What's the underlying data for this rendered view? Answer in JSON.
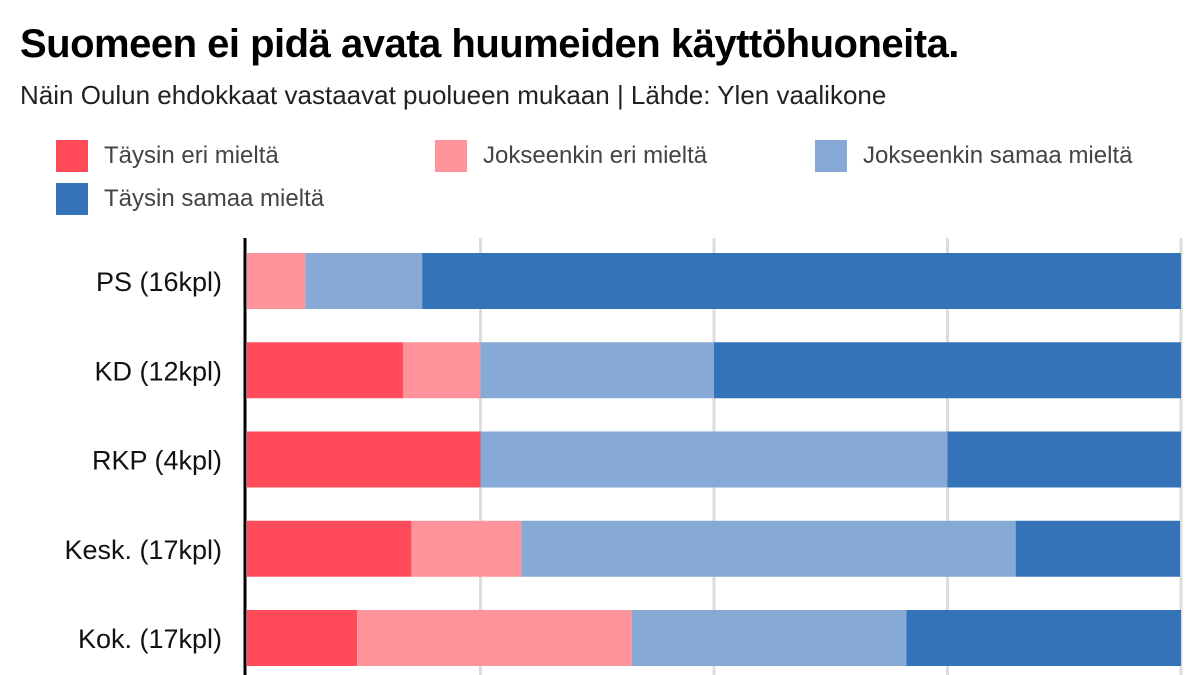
{
  "header": {
    "title": "Suomeen ei pidä avata huumeiden käyttöhuoneita.",
    "subtitle": "Näin Oulun ehdokkaat vastaavat puolueen mukaan | Lähde: Ylen vaalikone"
  },
  "colors": {
    "taysin_eri": "#ff4b5a",
    "jokseenkin_eri": "#ff939c",
    "jokseenkin_samaa": "#86aad5",
    "taysin_samaa": "#3473b7",
    "grid": "#dddddd",
    "axis": "#000000"
  },
  "chart_data": {
    "type": "bar",
    "orientation": "horizontal",
    "stacked": true,
    "normalized_percent": true,
    "title": "Suomeen ei pidä avata huumeiden käyttöhuoneita.",
    "subtitle": "Näin Oulun ehdokkaat vastaavat puolueen mukaan | Lähde: Ylen vaalikone",
    "categories": [
      "PS (16kpl)",
      "KD (12kpl)",
      "RKP (4kpl)",
      "Kesk. (17kpl)",
      "Kok. (17kpl)"
    ],
    "series": [
      {
        "name": "Täysin eri mieltä",
        "values": [
          0,
          16.7,
          25,
          17.6,
          11.8
        ]
      },
      {
        "name": "Jokseenkin eri mieltä",
        "values": [
          6.25,
          8.3,
          0,
          11.8,
          29.4
        ]
      },
      {
        "name": "Jokseenkin samaa mieltä",
        "values": [
          12.5,
          25,
          50,
          52.9,
          29.4
        ]
      },
      {
        "name": "Täysin samaa mieltä",
        "values": [
          81.25,
          50,
          25,
          17.6,
          29.4
        ]
      }
    ],
    "xlim": [
      0,
      100
    ],
    "gridlines_at": [
      25,
      50,
      75,
      100
    ],
    "grid": true,
    "x_tick_labels_shown": false,
    "legend_position": "top-left"
  }
}
